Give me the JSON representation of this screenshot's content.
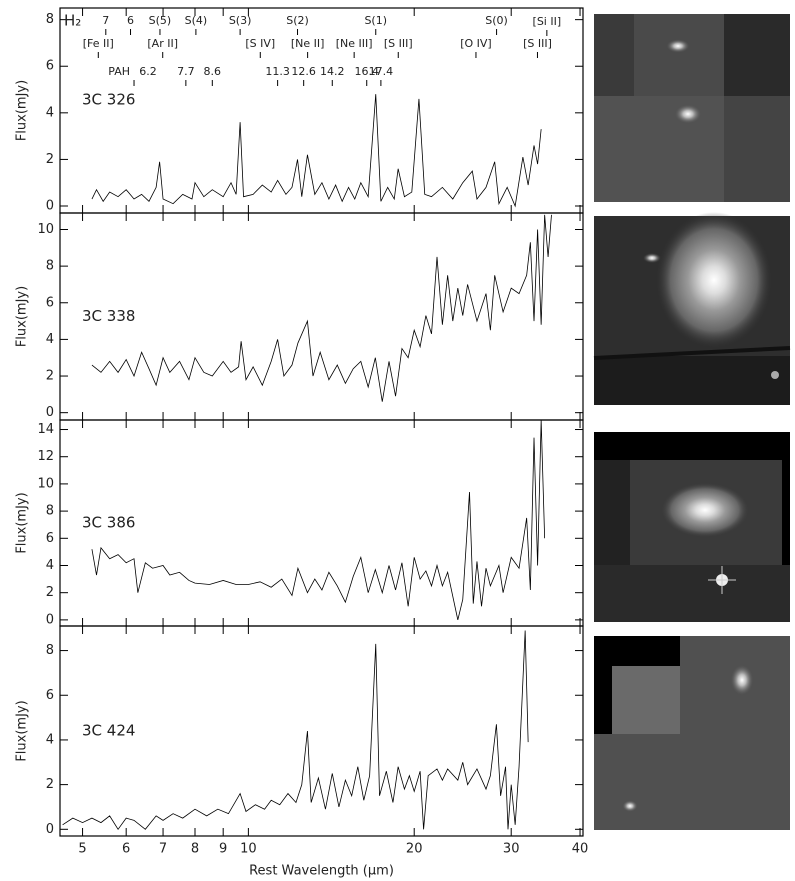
{
  "chart_data": [
    {
      "type": "line",
      "source": "3C 326",
      "ylabel": "Flux(mJy)",
      "xscale": "log",
      "xlim": [
        4.55,
        40.5
      ],
      "xticks": [
        5,
        6,
        7,
        8,
        9,
        10,
        20,
        30,
        40
      ],
      "ylim": [
        -0.3,
        8.5
      ],
      "yticks": [
        0,
        2,
        4,
        6,
        8
      ],
      "h2_label": "H₂",
      "h2_lines": [
        {
          "x": 5.51,
          "label": "7"
        },
        {
          "x": 6.11,
          "label": "6"
        },
        {
          "x": 6.91,
          "label": "S(5)"
        },
        {
          "x": 8.03,
          "label": "S(4)"
        },
        {
          "x": 9.66,
          "label": "S(3)"
        },
        {
          "x": 12.28,
          "label": "S(2)"
        },
        {
          "x": 17.03,
          "label": "S(1)"
        },
        {
          "x": 28.22,
          "label": "S(0)"
        }
      ],
      "ion_lines": [
        {
          "x": 5.34,
          "label": "[Fe II]"
        },
        {
          "x": 6.99,
          "label": "[Ar II]"
        },
        {
          "x": 10.51,
          "label": "[S IV]"
        },
        {
          "x": 12.81,
          "label": "[Ne II]"
        },
        {
          "x": 15.56,
          "label": "[Ne III]"
        },
        {
          "x": 18.71,
          "label": "[S III]"
        },
        {
          "x": 25.89,
          "label": "[O IV]"
        },
        {
          "x": 33.48,
          "label": "[S III]"
        },
        {
          "x": 34.82,
          "label": "[Si II]"
        }
      ],
      "pah_label": "PAH",
      "pah_features": [
        6.2,
        7.7,
        8.6,
        11.3,
        12.6,
        14.2,
        16.4,
        17.4
      ],
      "x": [
        5.2,
        5.3,
        5.45,
        5.6,
        5.8,
        6.0,
        6.2,
        6.4,
        6.6,
        6.8,
        6.9,
        7.0,
        7.3,
        7.6,
        7.9,
        8.0,
        8.3,
        8.6,
        9.0,
        9.3,
        9.5,
        9.66,
        9.8,
        10.2,
        10.6,
        11.0,
        11.3,
        11.7,
        12.0,
        12.28,
        12.5,
        12.8,
        13.2,
        13.6,
        14.0,
        14.4,
        14.8,
        15.2,
        15.6,
        16.0,
        16.5,
        17.03,
        17.4,
        17.9,
        18.4,
        18.7,
        19.2,
        19.8,
        20.4,
        20.9,
        21.5,
        22.5,
        23.5,
        24.5,
        25.5,
        26.0,
        27.0,
        28.0,
        28.5,
        29.5,
        30.5,
        31.5,
        32.2,
        33.0,
        33.5,
        34.0
      ],
      "values": [
        0.3,
        0.7,
        0.2,
        0.6,
        0.4,
        0.7,
        0.3,
        0.5,
        0.2,
        0.8,
        1.9,
        0.3,
        0.1,
        0.5,
        0.3,
        1.0,
        0.4,
        0.7,
        0.4,
        1.0,
        0.5,
        3.6,
        0.4,
        0.5,
        0.9,
        0.6,
        1.1,
        0.5,
        0.8,
        2.0,
        0.4,
        2.2,
        0.5,
        1.0,
        0.3,
        0.9,
        0.2,
        0.8,
        0.3,
        1.0,
        0.4,
        4.8,
        0.2,
        0.8,
        0.3,
        1.6,
        0.4,
        0.6,
        4.6,
        0.5,
        0.4,
        0.8,
        0.3,
        1.0,
        1.5,
        0.3,
        0.8,
        1.9,
        0.1,
        0.8,
        0.0,
        2.1,
        0.9,
        2.6,
        1.8,
        3.3
      ]
    },
    {
      "type": "line",
      "source": "3C 338",
      "ylabel": "Flux(mJy)",
      "xscale": "log",
      "xlim": [
        4.55,
        40.5
      ],
      "xticks": [
        5,
        6,
        7,
        8,
        9,
        10,
        20,
        30,
        40
      ],
      "ylim": [
        -0.4,
        10.9
      ],
      "yticks": [
        0,
        2,
        4,
        6,
        8,
        10
      ],
      "x": [
        5.2,
        5.4,
        5.6,
        5.8,
        6.0,
        6.2,
        6.4,
        6.6,
        6.8,
        7.0,
        7.2,
        7.5,
        7.8,
        8.0,
        8.3,
        8.6,
        9.0,
        9.3,
        9.6,
        9.7,
        9.9,
        10.2,
        10.6,
        11.0,
        11.3,
        11.6,
        12.0,
        12.3,
        12.8,
        13.1,
        13.5,
        14.0,
        14.5,
        15.0,
        15.5,
        16.0,
        16.5,
        17.0,
        17.5,
        18.0,
        18.5,
        19.0,
        19.5,
        20.0,
        20.5,
        21.0,
        21.5,
        22.0,
        22.5,
        23.0,
        23.5,
        24.0,
        24.5,
        25.0,
        26.0,
        27.0,
        27.5,
        28.0,
        29.0,
        30.0,
        31.0,
        32.0,
        32.5,
        33.0,
        33.5,
        34.0,
        34.5,
        35.0,
        35.5
      ],
      "values": [
        2.6,
        2.2,
        2.8,
        2.2,
        2.9,
        2.0,
        3.3,
        2.4,
        1.5,
        3.0,
        2.2,
        2.8,
        1.8,
        3.0,
        2.2,
        2.0,
        2.8,
        2.2,
        2.5,
        3.9,
        1.8,
        2.5,
        1.5,
        2.8,
        4.0,
        2.0,
        2.6,
        3.8,
        5.0,
        2.0,
        3.3,
        1.8,
        2.6,
        1.6,
        2.4,
        2.8,
        1.4,
        3.0,
        0.6,
        2.8,
        0.9,
        3.5,
        3.0,
        4.5,
        3.6,
        5.3,
        4.3,
        8.5,
        4.8,
        7.5,
        5.0,
        6.8,
        5.3,
        7.0,
        5.0,
        6.5,
        4.5,
        7.5,
        5.5,
        6.8,
        6.5,
        7.5,
        9.3,
        5.0,
        10.0,
        4.8,
        10.8,
        8.5,
        10.8
      ]
    },
    {
      "type": "line",
      "source": "3C 386",
      "ylabel": "Flux(mJy)",
      "xscale": "log",
      "xlim": [
        4.55,
        40.5
      ],
      "xticks": [
        5,
        6,
        7,
        8,
        9,
        10,
        20,
        30,
        40
      ],
      "ylim": [
        -0.45,
        14.7
      ],
      "yticks": [
        0,
        2,
        4,
        6,
        8,
        10,
        12,
        14
      ],
      "x": [
        5.2,
        5.3,
        5.4,
        5.6,
        5.8,
        6.0,
        6.2,
        6.3,
        6.5,
        6.7,
        7.0,
        7.2,
        7.5,
        7.8,
        8.0,
        8.5,
        9.0,
        9.5,
        10.0,
        10.5,
        11.0,
        11.5,
        12.0,
        12.3,
        12.8,
        13.2,
        13.6,
        14.0,
        14.5,
        15.0,
        15.5,
        16.0,
        16.5,
        17.0,
        17.5,
        18.0,
        18.5,
        19.0,
        19.5,
        20.0,
        20.5,
        21.0,
        21.5,
        22.0,
        22.5,
        23.0,
        24.0,
        24.5,
        25.2,
        25.6,
        26.0,
        26.5,
        27.0,
        27.5,
        28.5,
        29.0,
        30.0,
        31.0,
        32.0,
        32.5,
        33.0,
        33.5,
        34.0,
        34.5
      ],
      "values": [
        5.2,
        3.3,
        5.3,
        4.5,
        4.8,
        4.2,
        4.5,
        2.0,
        4.2,
        3.8,
        4.0,
        3.3,
        3.5,
        2.9,
        2.7,
        2.6,
        2.9,
        2.6,
        2.6,
        2.8,
        2.4,
        3.0,
        1.8,
        3.8,
        2.0,
        3.0,
        2.2,
        3.5,
        2.5,
        1.3,
        3.2,
        4.6,
        2.0,
        3.7,
        2.0,
        4.0,
        2.2,
        4.2,
        1.0,
        4.6,
        3.0,
        3.6,
        2.5,
        4.0,
        2.5,
        3.5,
        0.0,
        1.5,
        9.4,
        1.2,
        4.3,
        1.0,
        3.8,
        2.5,
        4.0,
        2.0,
        4.6,
        3.8,
        7.5,
        2.2,
        13.4,
        4.0,
        14.7,
        6.0
      ]
    },
    {
      "type": "line",
      "source": "3C 424",
      "ylabel": "Flux(mJy)",
      "xlabel": "Rest Wavelength (μm)",
      "xscale": "log",
      "xlim": [
        4.55,
        40.5
      ],
      "xticks": [
        5,
        6,
        7,
        8,
        9,
        10,
        20,
        30,
        40
      ],
      "ylim": [
        -0.3,
        9.1
      ],
      "yticks": [
        0,
        2,
        4,
        6,
        8
      ],
      "x": [
        4.6,
        4.8,
        5.0,
        5.2,
        5.4,
        5.6,
        5.8,
        6.0,
        6.2,
        6.5,
        6.8,
        7.0,
        7.3,
        7.6,
        8.0,
        8.4,
        8.8,
        9.2,
        9.66,
        9.9,
        10.3,
        10.7,
        11.0,
        11.4,
        11.8,
        12.2,
        12.5,
        12.8,
        13.0,
        13.4,
        13.8,
        14.2,
        14.6,
        15.0,
        15.4,
        15.8,
        16.2,
        16.6,
        17.03,
        17.3,
        17.8,
        18.3,
        18.7,
        19.2,
        19.6,
        20.0,
        20.5,
        20.8,
        21.2,
        22.0,
        22.5,
        23.0,
        24.0,
        24.5,
        25.0,
        26.0,
        27.0,
        27.5,
        28.2,
        28.7,
        29.3,
        29.6,
        30.0,
        30.5,
        31.0,
        31.8,
        32.2
      ],
      "values": [
        0.2,
        0.5,
        0.3,
        0.5,
        0.3,
        0.6,
        0.0,
        0.5,
        0.4,
        0.0,
        0.6,
        0.4,
        0.7,
        0.5,
        0.9,
        0.6,
        0.9,
        0.7,
        1.6,
        0.8,
        1.1,
        0.9,
        1.3,
        1.1,
        1.6,
        1.2,
        2.0,
        4.4,
        1.2,
        2.3,
        0.9,
        2.5,
        1.0,
        2.2,
        1.5,
        2.8,
        1.3,
        2.4,
        8.3,
        1.5,
        2.6,
        1.2,
        2.8,
        1.8,
        2.4,
        1.7,
        2.6,
        0.0,
        2.4,
        2.7,
        2.2,
        2.7,
        2.2,
        3.0,
        2.0,
        2.7,
        1.8,
        2.4,
        4.7,
        1.5,
        2.8,
        0.0,
        2.0,
        0.2,
        2.8,
        8.9,
        3.9
      ]
    }
  ]
}
